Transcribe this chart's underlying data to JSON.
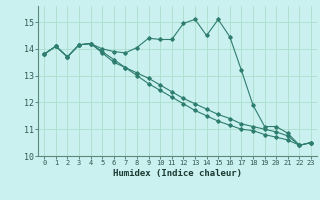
{
  "xlabel": "Humidex (Indice chaleur)",
  "ylabel": "",
  "background_color": "#caf0f0",
  "grid_color": "#aaddcc",
  "line_color": "#2e7d6e",
  "xlim": [
    -0.5,
    23.5
  ],
  "ylim": [
    10,
    15.6
  ],
  "yticks": [
    10,
    11,
    12,
    13,
    14,
    15
  ],
  "xticks": [
    0,
    1,
    2,
    3,
    4,
    5,
    6,
    7,
    8,
    9,
    10,
    11,
    12,
    13,
    14,
    15,
    16,
    17,
    18,
    19,
    20,
    21,
    22,
    23
  ],
  "series": [
    {
      "x": [
        0,
        1,
        2,
        3,
        4,
        5,
        6,
        7,
        8,
        9,
        10,
        11,
        12,
        13,
        14,
        15,
        16,
        17,
        18,
        19,
        20,
        21,
        22,
        23
      ],
      "y": [
        13.8,
        14.1,
        13.7,
        14.15,
        14.2,
        14.0,
        13.9,
        13.85,
        14.05,
        14.4,
        14.35,
        14.35,
        14.95,
        15.1,
        14.5,
        15.1,
        14.45,
        13.2,
        11.9,
        11.1,
        11.1,
        10.85,
        10.4,
        10.5
      ]
    },
    {
      "x": [
        0,
        1,
        2,
        3,
        4,
        5,
        6,
        7,
        8,
        9,
        10,
        11,
        12,
        13,
        14,
        15,
        16,
        17,
        18,
        19,
        20,
        21,
        22,
        23
      ],
      "y": [
        13.8,
        14.1,
        13.7,
        14.15,
        14.2,
        13.85,
        13.5,
        13.3,
        13.1,
        12.9,
        12.65,
        12.4,
        12.15,
        11.95,
        11.75,
        11.55,
        11.4,
        11.2,
        11.1,
        11.0,
        10.9,
        10.75,
        10.4,
        10.5
      ]
    },
    {
      "x": [
        0,
        1,
        2,
        3,
        4,
        5,
        6,
        7,
        8,
        9,
        10,
        11,
        12,
        13,
        14,
        15,
        16,
        17,
        18,
        19,
        20,
        21,
        22,
        23
      ],
      "y": [
        13.8,
        14.1,
        13.7,
        14.15,
        14.2,
        13.9,
        13.6,
        13.3,
        13.0,
        12.7,
        12.45,
        12.2,
        11.95,
        11.7,
        11.5,
        11.3,
        11.15,
        11.0,
        10.95,
        10.8,
        10.7,
        10.6,
        10.4,
        10.5
      ]
    }
  ]
}
